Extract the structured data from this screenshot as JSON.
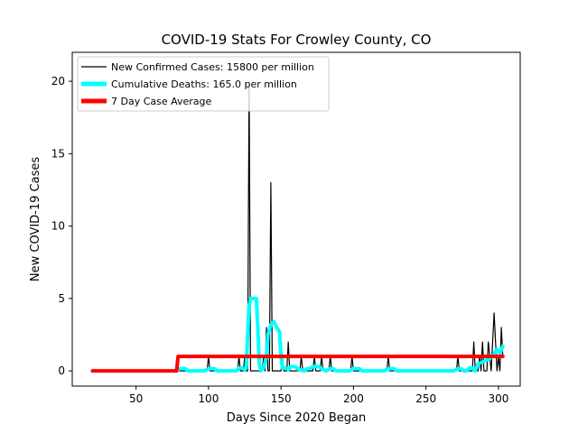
{
  "chart_data": {
    "type": "line",
    "title": "COVID-19 Stats For Crowley County, CO",
    "xlabel": "Days Since 2020 Began",
    "ylabel": "New COVID-19 Cases",
    "xlim": [
      6,
      315
    ],
    "ylim": [
      -1.05,
      22.0
    ],
    "xticks": [
      50,
      100,
      150,
      200,
      250,
      300
    ],
    "yticks": [
      0,
      5,
      10,
      15,
      20
    ],
    "legend_position": "top-left",
    "grid": false,
    "series": [
      {
        "name": "New Confirmed Cases: 15800 per million",
        "color": "#000000",
        "style": "thin",
        "points": [
          [
            80,
            0
          ],
          [
            99,
            0
          ],
          [
            100,
            1
          ],
          [
            101,
            0
          ],
          [
            120,
            0
          ],
          [
            121,
            1
          ],
          [
            122,
            0
          ],
          [
            124,
            0
          ],
          [
            125,
            1
          ],
          [
            126,
            0
          ],
          [
            127,
            0
          ],
          [
            128,
            20
          ],
          [
            129,
            0
          ],
          [
            137,
            0
          ],
          [
            138,
            1
          ],
          [
            139,
            0
          ],
          [
            140,
            3
          ],
          [
            141,
            0
          ],
          [
            142,
            0
          ],
          [
            143,
            13
          ],
          [
            144,
            0
          ],
          [
            150,
            0
          ],
          [
            151,
            1
          ],
          [
            152,
            0
          ],
          [
            154,
            0
          ],
          [
            155,
            2
          ],
          [
            156,
            0
          ],
          [
            163,
            0
          ],
          [
            164,
            1
          ],
          [
            165,
            0
          ],
          [
            172,
            0
          ],
          [
            173,
            1
          ],
          [
            174,
            0
          ],
          [
            177,
            0
          ],
          [
            178,
            1
          ],
          [
            179,
            0
          ],
          [
            183,
            0
          ],
          [
            184,
            1
          ],
          [
            185,
            0
          ],
          [
            198,
            0
          ],
          [
            199,
            1
          ],
          [
            200,
            0
          ],
          [
            223,
            0
          ],
          [
            224,
            1
          ],
          [
            225,
            0
          ],
          [
            271,
            0
          ],
          [
            272,
            1
          ],
          [
            273,
            0
          ],
          [
            282,
            0
          ],
          [
            283,
            2
          ],
          [
            284,
            0
          ],
          [
            286,
            0
          ],
          [
            287,
            1
          ],
          [
            288,
            0
          ],
          [
            289,
            2
          ],
          [
            290,
            0
          ],
          [
            292,
            0
          ],
          [
            293,
            2
          ],
          [
            294,
            1
          ],
          [
            295,
            0
          ],
          [
            296,
            2
          ],
          [
            297,
            4
          ],
          [
            298,
            2
          ],
          [
            299,
            0
          ],
          [
            300,
            1
          ],
          [
            301,
            0
          ],
          [
            302,
            3
          ],
          [
            303,
            1
          ]
        ]
      },
      {
        "name": "Cumulative Deaths: 165.0 per million",
        "color": "#00ffff",
        "style": "thick",
        "points": [
          [
            80,
            0.15
          ],
          [
            84,
            0.15
          ],
          [
            86,
            0
          ],
          [
            97,
            0
          ],
          [
            100,
            0.15
          ],
          [
            104,
            0.15
          ],
          [
            106,
            0
          ],
          [
            119,
            0
          ],
          [
            121,
            0.2
          ],
          [
            123,
            0.2
          ],
          [
            125,
            0.1
          ],
          [
            126,
            0.2
          ],
          [
            127,
            2.5
          ],
          [
            128,
            4.5
          ],
          [
            129,
            5
          ],
          [
            133,
            5
          ],
          [
            134,
            3
          ],
          [
            135,
            0.5
          ],
          [
            136,
            0
          ],
          [
            138,
            0.2
          ],
          [
            140,
            1
          ],
          [
            141,
            2.5
          ],
          [
            143,
            3.2
          ],
          [
            145,
            3.4
          ],
          [
            147,
            3
          ],
          [
            149,
            2.7
          ],
          [
            150,
            1
          ],
          [
            151,
            0.2
          ],
          [
            153,
            0.2
          ],
          [
            155,
            0.1
          ],
          [
            157,
            0.3
          ],
          [
            160,
            0.3
          ],
          [
            162,
            0.1
          ],
          [
            166,
            0
          ],
          [
            168,
            0.15
          ],
          [
            170,
            0.15
          ],
          [
            172,
            0.3
          ],
          [
            176,
            0.3
          ],
          [
            178,
            0.15
          ],
          [
            181,
            0
          ],
          [
            184,
            0.15
          ],
          [
            186,
            0.15
          ],
          [
            188,
            0
          ],
          [
            197,
            0
          ],
          [
            200,
            0.15
          ],
          [
            204,
            0.15
          ],
          [
            206,
            0
          ],
          [
            221,
            0
          ],
          [
            224,
            0.15
          ],
          [
            228,
            0.15
          ],
          [
            230,
            0
          ],
          [
            269,
            0
          ],
          [
            272,
            0.15
          ],
          [
            274,
            0.15
          ],
          [
            276,
            0
          ],
          [
            278,
            0
          ],
          [
            280,
            0.2
          ],
          [
            282,
            0.2
          ],
          [
            284,
            0
          ],
          [
            286,
            0.5
          ],
          [
            289,
            0.6
          ],
          [
            293,
            0.8
          ],
          [
            296,
            1.0
          ],
          [
            299,
            1.5
          ],
          [
            301,
            1.2
          ],
          [
            303,
            1.7
          ]
        ]
      },
      {
        "name": "7 Day Case Average",
        "color": "#ff0000",
        "style": "thick",
        "points": [
          [
            20,
            0
          ],
          [
            78,
            0
          ],
          [
            79,
            1
          ],
          [
            303,
            1
          ]
        ]
      }
    ]
  }
}
